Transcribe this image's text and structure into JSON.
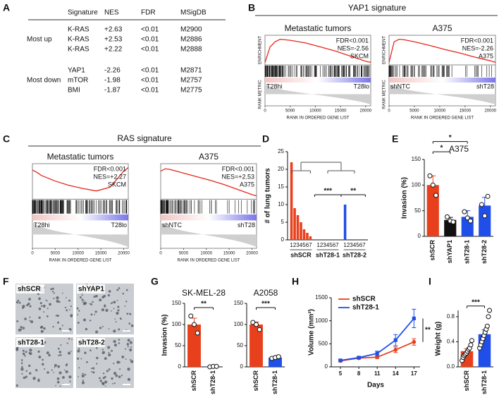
{
  "panel_labels": [
    "A",
    "B",
    "C",
    "D",
    "E",
    "F",
    "G",
    "H",
    "I"
  ],
  "table": {
    "header": [
      "Signature",
      "NES",
      "FDR",
      "MSigDB"
    ],
    "groups": [
      {
        "label": "Most up",
        "rows": [
          [
            "K-RAS",
            "+2.63",
            "<0.01",
            "M2900"
          ],
          [
            "K-RAS",
            "+2.53",
            "<0.01",
            "M2886"
          ],
          [
            "K-RAS",
            "+2.22",
            "<0.01",
            "M2888"
          ]
        ]
      },
      {
        "label": "Most down",
        "rows": [
          [
            "YAP1",
            "-2.26",
            "<0.01",
            "M2871"
          ],
          [
            "mTOR",
            "-1.98",
            "<0.01",
            "M2757"
          ],
          [
            "BMI",
            "-1.87",
            "<0.01",
            "M2775"
          ]
        ]
      }
    ]
  },
  "figure_titles": [
    "YAP1 signature",
    "RAS signature"
  ],
  "images": {
    "labels": [
      "shSCR",
      "shYAP1",
      "shT28-1",
      "shT28-2"
    ]
  },
  "chart_data": [
    {
      "type": "gsea",
      "title": "Metastatic tumors",
      "annotations": [
        "FDR<0.001",
        "NES=-2.56",
        "SKCM"
      ],
      "left_label": "T28hi",
      "right_label": "T28lo",
      "ylabel_top": "ENRICHMENT",
      "ylabel_bottom": "RANK METRIC",
      "xlabel": "RANK IN ORDERED GENE LIST",
      "x": [
        0,
        1000,
        2000,
        3000,
        5000,
        8000,
        11000,
        14000,
        17000,
        20000,
        21000
      ],
      "values": [
        0,
        0.3,
        0.4,
        0.45,
        0.43,
        0.38,
        0.3,
        0.22,
        0.12,
        0.02,
        0
      ],
      "color": "#e8261c",
      "xlim": [
        0,
        21000
      ],
      "xticks": [
        0,
        5000,
        10000,
        15000,
        20000
      ],
      "ylim": [
        -0.05,
        0.5
      ]
    },
    {
      "type": "gsea",
      "title": "A375",
      "annotations": [
        "FDR<0.001",
        "NES=-2.26",
        "A375"
      ],
      "left_label": "shNTC",
      "right_label": "shT28",
      "ylabel_top": "ENRICHMENT",
      "ylabel_bottom": "RANK METRIC",
      "xlabel": "RANK IN ORDERED GENE LIST",
      "x": [
        0,
        1000,
        2000,
        3000,
        5000,
        8000,
        11000,
        14000,
        17000,
        20000,
        21000
      ],
      "values": [
        0,
        0.4,
        0.45,
        0.44,
        0.4,
        0.33,
        0.25,
        0.18,
        0.1,
        0.03,
        0
      ],
      "color": "#e8261c",
      "xlim": [
        0,
        21000
      ],
      "xticks": [
        0,
        5000,
        10000,
        15000,
        20000
      ],
      "ylim": [
        -0.05,
        0.5
      ]
    },
    {
      "type": "gsea",
      "title": "Metastatic tumors",
      "annotations": [
        "FDR<0.001",
        "NES=+2.27",
        "SKCM"
      ],
      "left_label": "T28hi",
      "right_label": "T28lo",
      "xlabel": "RANK IN ORDERED GENE LIST",
      "x": [
        0,
        1000,
        2000,
        3000,
        5000,
        8000,
        11000,
        14000,
        17000,
        20000,
        21000
      ],
      "values": [
        0.42,
        0.38,
        0.33,
        0.3,
        0.24,
        0.17,
        0.12,
        0.08,
        0.14,
        0.4,
        0.46
      ],
      "color": "#e8261c",
      "xlim": [
        0,
        21000
      ],
      "xticks": [
        0,
        5000,
        10000,
        15000,
        20000
      ],
      "ylim": [
        -0.05,
        0.5
      ]
    },
    {
      "type": "gsea",
      "title": "A375",
      "annotations": [
        "FDR<0.001",
        "NES=+2.53",
        "A375"
      ],
      "left_label": "shNTC",
      "right_label": "shT28",
      "xlabel": "RANK IN ORDERED GENE LIST",
      "x": [
        0,
        1000,
        2000,
        3000,
        5000,
        8000,
        11000,
        14000,
        17000,
        20000,
        21000
      ],
      "values": [
        0.4,
        0.44,
        0.43,
        0.41,
        0.37,
        0.31,
        0.25,
        0.18,
        0.1,
        0.02,
        0
      ],
      "color": "#e8261c",
      "xlim": [
        0,
        21000
      ],
      "xticks": [
        0,
        5000,
        10000,
        15000,
        20000
      ],
      "ylim": [
        -0.05,
        0.5
      ]
    },
    {
      "type": "grouped_bar",
      "ylabel": "# of lung tumors",
      "categories": [
        "1",
        "2",
        "3",
        "4",
        "5",
        "6",
        "7"
      ],
      "series": [
        {
          "name": "shSCR",
          "color": "#e8401c",
          "values": [
            22,
            9,
            7,
            5,
            3,
            2,
            1
          ]
        },
        {
          "name": "shT28-1",
          "color": "#1f4fe8",
          "values": [
            0,
            0,
            0,
            0,
            0,
            0,
            0
          ]
        },
        {
          "name": "shT28-2",
          "color": "#1f4fe8",
          "values": [
            10,
            0,
            0,
            0,
            0,
            0,
            0
          ]
        }
      ],
      "annotations": [
        "***",
        "**"
      ],
      "ylim": [
        0,
        25
      ],
      "yticks": [
        0,
        5,
        10,
        15,
        20,
        25
      ]
    },
    {
      "type": "bar",
      "title": "A375",
      "ylabel": "Invasion (%)",
      "categories": [
        "shSCR",
        "shYAP1",
        "shT28-1",
        "shT28-2"
      ],
      "values": [
        100,
        32,
        38,
        60
      ],
      "errors": [
        18,
        5,
        12,
        16
      ],
      "points": [
        [
          118,
          100,
          80
        ],
        [
          38,
          30,
          28
        ],
        [
          48,
          36,
          30
        ],
        [
          62,
          40,
          78
        ]
      ],
      "colors": [
        "#e8401c",
        "#111111",
        "#1f4fe8",
        "#1f4fe8"
      ],
      "annotations": [
        "*",
        "*"
      ],
      "ylim": [
        0,
        150
      ],
      "yticks": [
        0,
        50,
        100,
        150
      ]
    },
    {
      "type": "bar",
      "title": "SK-MEL-28",
      "ylabel": "Invasion (%)",
      "categories": [
        "shSCR",
        "shT28-1"
      ],
      "values": [
        100,
        1
      ],
      "errors": [
        15,
        0.5
      ],
      "points": [
        [
          120,
          100,
          80
        ],
        [
          0,
          1,
          1
        ]
      ],
      "colors": [
        "#e8401c",
        "#1f4fe8"
      ],
      "annotations": [
        "**"
      ],
      "ylim": [
        0,
        150
      ],
      "yticks": [
        0,
        50,
        100,
        150
      ]
    },
    {
      "type": "bar",
      "title": "A2058",
      "categories": [
        "shSCR",
        "shT28-1"
      ],
      "values": [
        100,
        22
      ],
      "errors": [
        6,
        2
      ],
      "points": [
        [
          105,
          100,
          88
        ],
        [
          20,
          22,
          24
        ]
      ],
      "colors": [
        "#e8401c",
        "#1f4fe8"
      ],
      "annotations": [
        "***"
      ],
      "ylim": [
        0,
        150
      ],
      "yticks": [
        0,
        50,
        100,
        150
      ]
    },
    {
      "type": "line",
      "ylabel": "Volume (mm³)",
      "xlabel": "Days",
      "x": [
        5,
        8,
        11,
        14,
        17
      ],
      "series": [
        {
          "name": "shSCR",
          "color": "#e8401c",
          "values": [
            130,
            190,
            210,
            370,
            540
          ],
          "errors": [
            20,
            20,
            30,
            60,
            70
          ]
        },
        {
          "name": "shT28-1",
          "color": "#1f4fe8",
          "values": [
            140,
            200,
            290,
            580,
            1050
          ],
          "errors": [
            20,
            25,
            50,
            120,
            200
          ]
        }
      ],
      "annotations": [
        "**"
      ],
      "xlim": [
        3.5,
        18
      ],
      "xticks": [
        5,
        8,
        11,
        14,
        17
      ],
      "ylim": [
        0,
        1500
      ],
      "yticks": [
        0,
        500,
        1000,
        1500
      ]
    },
    {
      "type": "bar",
      "ylabel": "Weight (g)",
      "categories": [
        "shSCR",
        "shT28-1"
      ],
      "values": [
        0.25,
        0.52
      ],
      "errors": [
        0.04,
        0.07
      ],
      "points": [
        [
          0.1,
          0.15,
          0.18,
          0.2,
          0.22,
          0.25,
          0.28,
          0.3,
          0.35,
          0.42
        ],
        [
          0.3,
          0.35,
          0.4,
          0.45,
          0.5,
          0.55,
          0.6,
          0.65,
          0.8,
          0.9
        ]
      ],
      "colors": [
        "#e8401c",
        "#1f4fe8"
      ],
      "annotations": [
        "***"
      ],
      "ylim": [
        0,
        0.9
      ],
      "yticks": [
        {
          "value": 0,
          "label": "0.0"
        },
        0.4,
        0.8
      ]
    }
  ]
}
